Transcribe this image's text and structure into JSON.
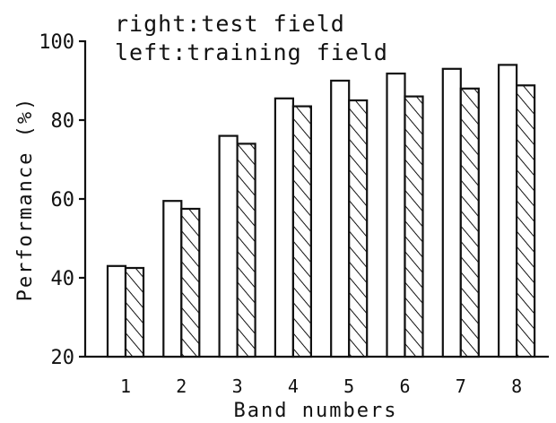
{
  "chart_data": {
    "type": "bar",
    "xlabel": "Band numbers",
    "ylabel": "Performance (%)",
    "ylim": [
      20,
      100
    ],
    "yticks": [
      20,
      40,
      60,
      80,
      100
    ],
    "categories": [
      "1",
      "2",
      "3",
      "4",
      "5",
      "6",
      "7",
      "8"
    ],
    "legend_lines": [
      "right:test field",
      "left:training field"
    ],
    "legend_position": "top-left",
    "series": [
      {
        "pattern": "open",
        "values": [
          43,
          59.5,
          76,
          85.5,
          90,
          91.8,
          93,
          94
        ]
      },
      {
        "pattern": "hatched",
        "values": [
          42.5,
          57.5,
          74,
          83.5,
          85,
          86,
          88,
          88.8
        ]
      }
    ],
    "grid": false
  }
}
